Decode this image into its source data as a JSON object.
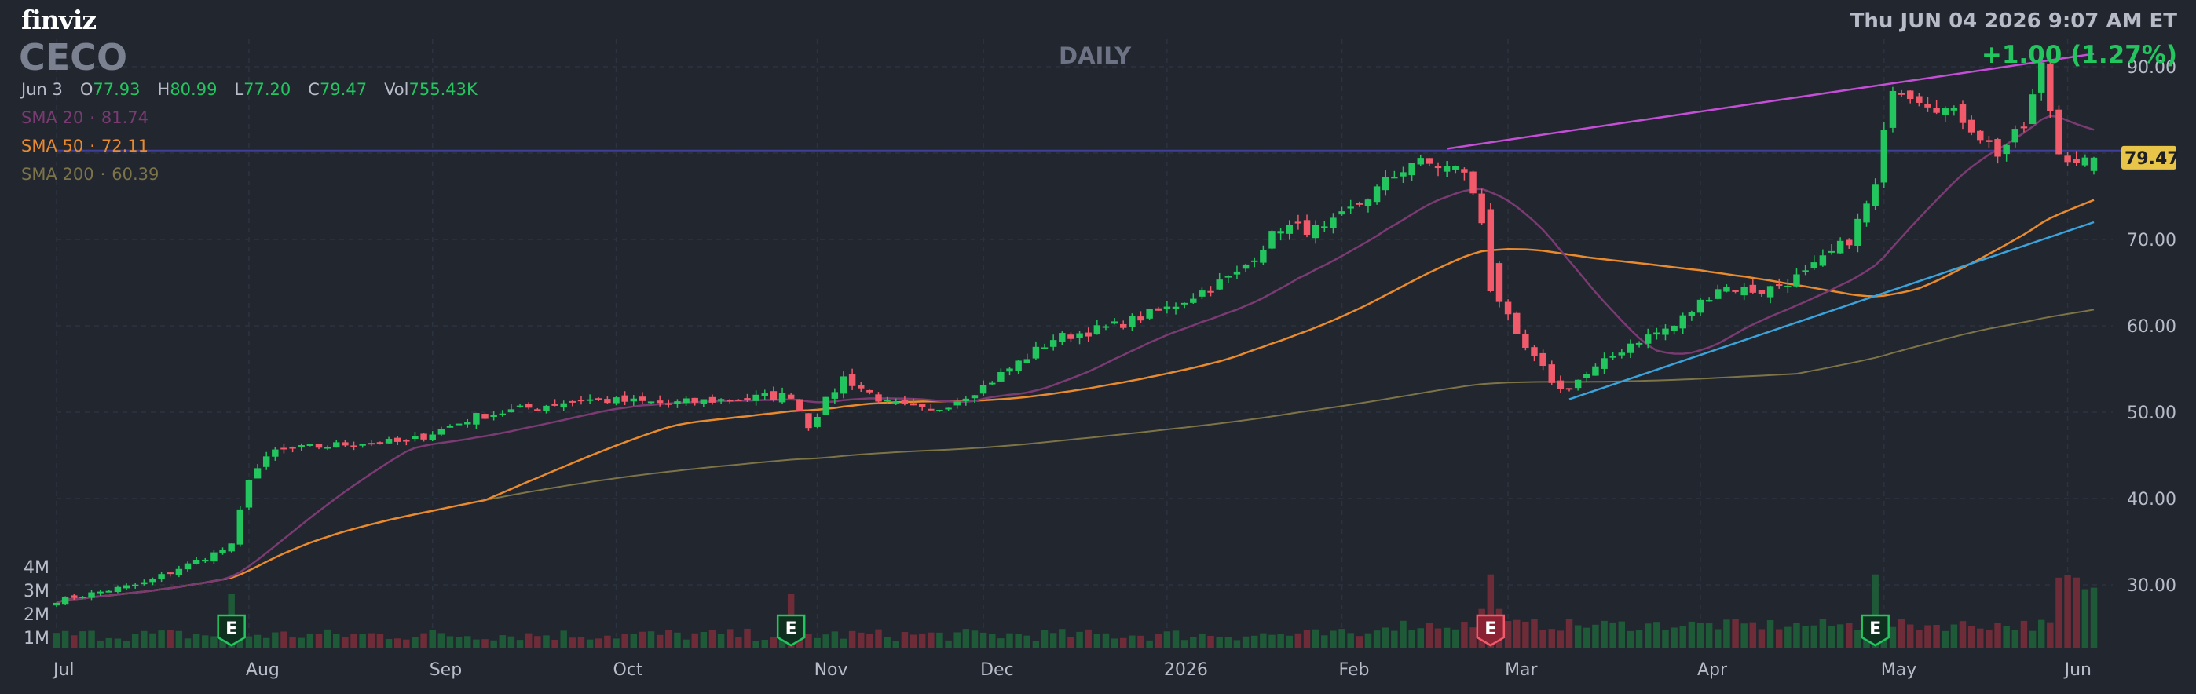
{
  "brand": "finviz",
  "ticker": "CECO",
  "timeframe": "DAILY",
  "datetime": "Thu JUN 04 2026 9:07 AM ET",
  "change": "+1.00 (1.27%)",
  "ohlc": {
    "date": "Jun 3",
    "open_label": "O",
    "open": "77.93",
    "high_label": "H",
    "high": "80.99",
    "low_label": "L",
    "low": "77.20",
    "close_label": "C",
    "close": "79.47",
    "vol_label": "Vol",
    "vol": "755.43K"
  },
  "sma": [
    {
      "label": "SMA 20",
      "value": "81.74",
      "color": "#7a3a72"
    },
    {
      "label": "SMA 50",
      "value": "72.11",
      "color": "#e88a2d"
    },
    {
      "label": "SMA 200",
      "value": "60.39",
      "color": "#7c7448"
    }
  ],
  "colors": {
    "background": "#22262f",
    "up": "#22c55e",
    "down": "#f05a6b",
    "grid": "#2d3240",
    "channel_upper": "#c44fd6",
    "channel_lower": "#3aa3db",
    "horizontal_level": "#3f3f9a",
    "price_tag": "#e8c548"
  },
  "chart_data": {
    "type": "candlestick",
    "ylim": [
      25,
      95
    ],
    "y_ticks": [
      30,
      40,
      50,
      60,
      70,
      80,
      90
    ],
    "y_tick_labels": [
      "30.00",
      "40.00",
      "50.00",
      "60.00",
      "70.00",
      "80.00",
      "90.00"
    ],
    "month_labels": [
      "Jul",
      "Aug",
      "Sep",
      "Oct",
      "Nov",
      "Dec",
      "2026",
      "Feb",
      "Mar",
      "Apr",
      "May",
      "Jun"
    ],
    "month_start_index": [
      0,
      22,
      43,
      64,
      87,
      106,
      127,
      147,
      166,
      188,
      209,
      230
    ],
    "volume_ticks": [
      "1M",
      "2M",
      "3M",
      "4M"
    ],
    "volume_ylim": [
      0,
      4200000
    ],
    "last_price_label": "79.47",
    "earnings_label": "E",
    "earnings": [
      {
        "index": 20,
        "type": "beat"
      },
      {
        "index": 84,
        "type": "beat"
      },
      {
        "index": 164,
        "type": "miss"
      },
      {
        "index": 208,
        "type": "beat"
      }
    ],
    "horizontal_level": 80.3,
    "trendlines": [
      {
        "name": "channel-upper",
        "start": {
          "index": 159,
          "value": 80.5
        },
        "end": {
          "index": 233,
          "value": 91.5
        }
      },
      {
        "name": "channel-lower",
        "start": {
          "index": 173,
          "value": 51.5
        },
        "end": {
          "index": 233,
          "value": 72
        }
      }
    ],
    "anchors": [
      [
        0,
        28.2
      ],
      [
        10,
        30.2
      ],
      [
        20,
        34.5
      ],
      [
        22,
        42.5
      ],
      [
        25,
        45.5
      ],
      [
        35,
        46.5
      ],
      [
        40,
        46.5
      ],
      [
        48,
        49.5
      ],
      [
        60,
        51.5
      ],
      [
        70,
        51
      ],
      [
        84,
        52
      ],
      [
        86,
        48.5
      ],
      [
        90,
        54
      ],
      [
        95,
        51
      ],
      [
        100,
        50
      ],
      [
        106,
        53
      ],
      [
        114,
        58.5
      ],
      [
        121,
        60
      ],
      [
        127,
        62
      ],
      [
        135,
        66
      ],
      [
        140,
        71.5
      ],
      [
        145,
        71
      ],
      [
        150,
        75
      ],
      [
        155,
        79
      ],
      [
        161,
        78
      ],
      [
        163,
        72
      ],
      [
        165,
        63
      ],
      [
        167,
        58.5
      ],
      [
        172,
        52.5
      ],
      [
        176,
        55
      ],
      [
        180,
        58
      ],
      [
        185,
        60
      ],
      [
        190,
        64.5
      ],
      [
        195,
        64
      ],
      [
        200,
        66
      ],
      [
        205,
        70
      ],
      [
        208,
        76
      ],
      [
        210,
        88
      ],
      [
        214,
        86
      ],
      [
        218,
        84
      ],
      [
        222,
        80
      ],
      [
        225,
        83
      ],
      [
        227,
        90
      ],
      [
        229,
        80
      ],
      [
        232,
        79
      ]
    ]
  }
}
